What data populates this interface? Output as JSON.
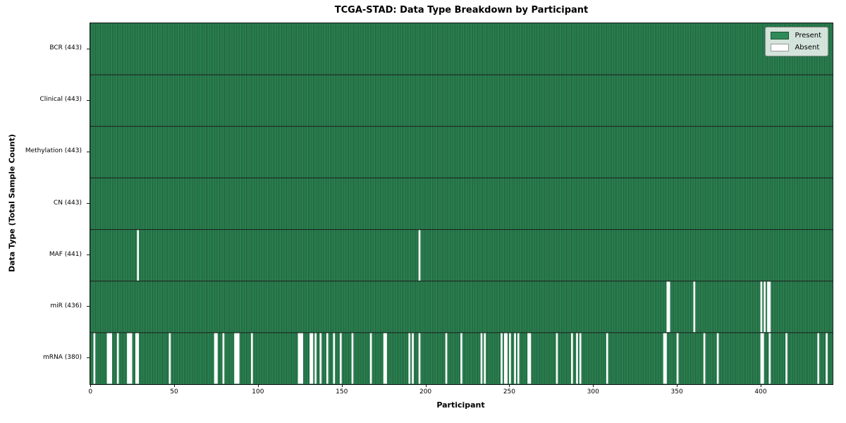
{
  "figure": {
    "title": "TCGA-STAD: Data Type Breakdown by Participant",
    "xlabel": "Participant",
    "ylabel": "Data Type (Total Sample Count)"
  },
  "legend": {
    "items": [
      {
        "label": "Present",
        "color": "#2e8b57"
      },
      {
        "label": "Absent",
        "color": "#ffffff"
      }
    ]
  },
  "colors": {
    "present": "#2e8b57",
    "present_edge": "#17432a",
    "absent": "#ffffff",
    "row_divider": "#1c1c1c",
    "spine": "#111111",
    "legend_border": "#8a8a8a"
  },
  "chart_data": {
    "type": "heatmap",
    "title": "TCGA-STAD: Data Type Breakdown by Participant",
    "xlabel": "Participant",
    "ylabel": "Data Type (Total Sample Count)",
    "n_participants": 443,
    "x_ticks": [
      0,
      50,
      100,
      150,
      200,
      250,
      300,
      350,
      400
    ],
    "legend_entries": [
      "Present",
      "Absent"
    ],
    "legend_position": "upper right",
    "grid": "row-dividers-only",
    "rows": [
      {
        "label": "BCR (443)",
        "data_type": "BCR",
        "present_count": 443,
        "absent_participants": []
      },
      {
        "label": "Clinical (443)",
        "data_type": "Clinical",
        "present_count": 443,
        "absent_participants": []
      },
      {
        "label": "Methylation (443)",
        "data_type": "Methylation",
        "present_count": 443,
        "absent_participants": []
      },
      {
        "label": "CN (443)",
        "data_type": "CN",
        "present_count": 443,
        "absent_participants": []
      },
      {
        "label": "MAF (441)",
        "data_type": "MAF",
        "present_count": 441,
        "absent_participants": [
          28,
          196
        ]
      },
      {
        "label": "miR (436)",
        "data_type": "miR",
        "present_count": 436,
        "absent_participants": [
          344,
          345,
          360,
          400,
          402,
          404,
          405
        ]
      },
      {
        "label": "mRNA (380)",
        "data_type": "mRNA",
        "present_count": 380,
        "absent_participants": [
          2,
          10,
          11,
          12,
          16,
          22,
          23,
          24,
          27,
          28,
          47,
          74,
          75,
          79,
          86,
          87,
          88,
          96,
          124,
          125,
          126,
          131,
          132,
          134,
          137,
          141,
          145,
          149,
          156,
          167,
          175,
          176,
          190,
          192,
          196,
          212,
          221,
          233,
          235,
          245,
          247,
          248,
          250,
          253,
          255,
          261,
          262,
          278,
          287,
          290,
          292,
          308,
          342,
          343,
          350,
          366,
          374,
          400,
          401,
          405,
          415,
          434,
          439
        ]
      }
    ]
  }
}
